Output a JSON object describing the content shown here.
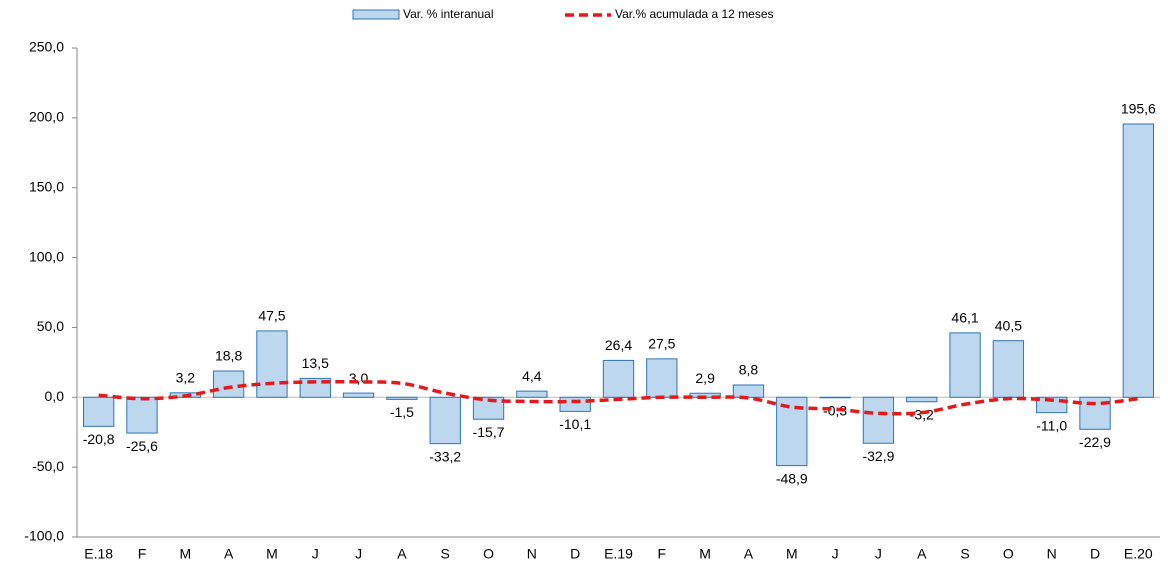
{
  "chart_data": {
    "type": "bar-line",
    "categories": [
      "E.18",
      "F",
      "M",
      "A",
      "M",
      "J",
      "J",
      "A",
      "S",
      "O",
      "N",
      "D",
      "E.19",
      "F",
      "M",
      "A",
      "M",
      "J",
      "J",
      "A",
      "S",
      "O",
      "N",
      "D",
      "E.20"
    ],
    "series": [
      {
        "name": "Var. % interanual",
        "type": "bar",
        "color": "#bdd7ee",
        "edge_color": "#2e75b6",
        "values": [
          -20.8,
          -25.6,
          3.2,
          18.8,
          47.5,
          13.5,
          3.0,
          -1.5,
          -33.2,
          -15.7,
          4.4,
          -10.1,
          26.4,
          27.5,
          2.9,
          8.8,
          -48.9,
          -0.3,
          -32.9,
          -3.2,
          46.1,
          40.5,
          -11.0,
          -22.9,
          195.6
        ],
        "value_labels": [
          "-20,8",
          "-25,6",
          "3,2",
          "18,8",
          "47,5",
          "13,5",
          "3,0",
          "-1,5",
          "-33,2",
          "-15,7",
          "4,4",
          "-10,1",
          "26,4",
          "27,5",
          "2,9",
          "8,8",
          "-48,9",
          "-0,3",
          "-32,9",
          "-3,2",
          "46,1",
          "40,5",
          "-11,0",
          "-22,9",
          "195,6"
        ]
      },
      {
        "name": "Var.% acumulada a 12 meses",
        "type": "line",
        "color": "#e31a1c",
        "dashed": true,
        "values": [
          1.5,
          -1,
          1,
          7,
          10,
          11,
          11,
          10,
          3,
          -2,
          -3,
          -3,
          -1.5,
          0,
          0,
          -0.5,
          -7,
          -8.5,
          -11.5,
          -11,
          -5,
          -1,
          -2,
          -4.5,
          -1
        ]
      }
    ],
    "ylim": [
      -100,
      250
    ],
    "yticks": [
      {
        "value": -100,
        "label": "-100,0"
      },
      {
        "value": -50,
        "label": "-50,0"
      },
      {
        "value": 0,
        "label": "0,0"
      },
      {
        "value": 50,
        "label": "50,0"
      },
      {
        "value": 100,
        "label": "100,0"
      },
      {
        "value": 150,
        "label": "150,0"
      },
      {
        "value": 200,
        "label": "200,0"
      },
      {
        "value": 250,
        "label": "250,0"
      }
    ],
    "legend": "top",
    "grid": false
  }
}
